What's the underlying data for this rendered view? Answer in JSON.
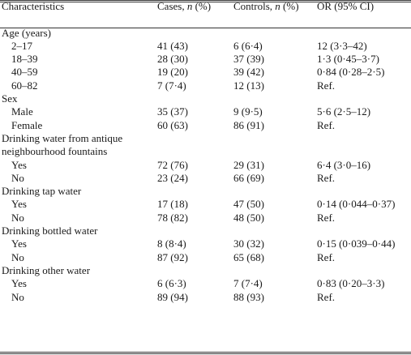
{
  "header": {
    "characteristics": "Characteristics",
    "cases": "Cases, n (%)",
    "controls": "Controls, n (%)",
    "or": "OR (95% CI)"
  },
  "groups": [
    {
      "title": [
        "Age (years)"
      ],
      "rows": [
        {
          "label": "2–17",
          "cases": "41 (43)",
          "controls": "6 (6·4)",
          "or": "12 (3·3–42)"
        },
        {
          "label": "18–39",
          "cases": "28 (30)",
          "controls": "37 (39)",
          "or": "1·3 (0·45–3·7)"
        },
        {
          "label": "40–59",
          "cases": "19 (20)",
          "controls": "39 (42)",
          "or": "0·84 (0·28–2·5)"
        },
        {
          "label": "60–82",
          "cases": "7 (7·4)",
          "controls": "12 (13)",
          "or": "Ref."
        }
      ]
    },
    {
      "title": [
        "Sex"
      ],
      "rows": [
        {
          "label": "Male",
          "cases": "35 (37)",
          "controls": "9 (9·5)",
          "or": "5·6 (2·5–12)"
        },
        {
          "label": "Female",
          "cases": "60 (63)",
          "controls": "86 (91)",
          "or": "Ref."
        }
      ]
    },
    {
      "title": [
        "Drinking water from antique",
        "neighbourhood fountains"
      ],
      "rows": [
        {
          "label": "Yes",
          "cases": "72 (76)",
          "controls": "29 (31)",
          "or": "6·4 (3·0–16)"
        },
        {
          "label": "No",
          "cases": "23 (24)",
          "controls": "66 (69)",
          "or": "Ref."
        }
      ]
    },
    {
      "title": [
        "Drinking tap water"
      ],
      "rows": [
        {
          "label": "Yes",
          "cases": "17 (18)",
          "controls": "47 (50)",
          "or": "0·14 (0·044–0·37)"
        },
        {
          "label": "No",
          "cases": "78 (82)",
          "controls": "48 (50)",
          "or": "Ref."
        }
      ]
    },
    {
      "title": [
        "Drinking bottled water"
      ],
      "rows": [
        {
          "label": "Yes",
          "cases": "8 (8·4)",
          "controls": "30 (32)",
          "or": "0·15 (0·039–0·44)"
        },
        {
          "label": "No",
          "cases": "87 (92)",
          "controls": "65 (68)",
          "or": "Ref."
        }
      ]
    },
    {
      "title": [
        "Drinking other water"
      ],
      "rows": [
        {
          "label": "Yes",
          "cases": "6 (6·3)",
          "controls": "7 (7·4)",
          "or": "0·83 (0·20–3·3)"
        },
        {
          "label": "No",
          "cases": "89 (94)",
          "controls": "88 (93)",
          "or": "Ref."
        }
      ]
    }
  ]
}
